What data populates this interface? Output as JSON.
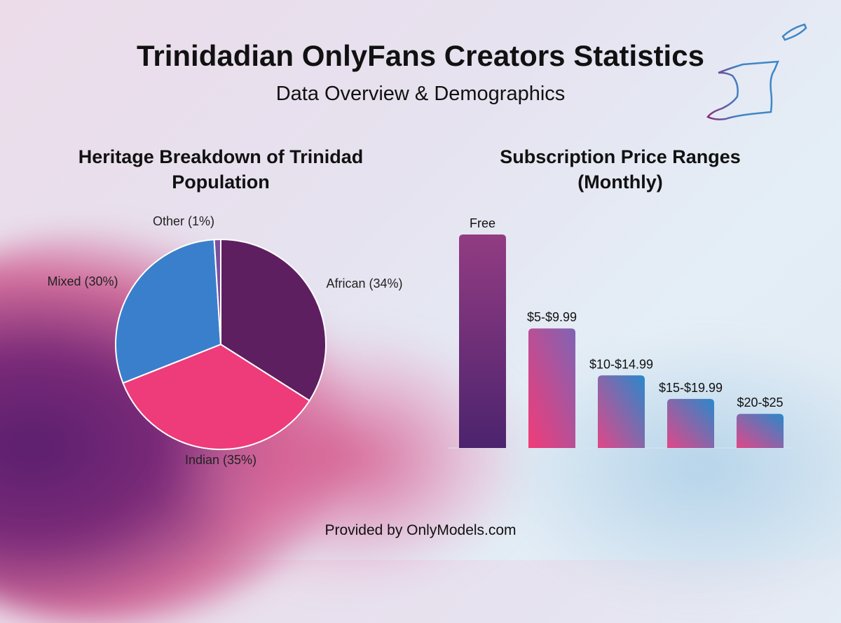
{
  "header": {
    "title": "Trinidadian OnlyFans Creators Statistics",
    "subtitle": "Data Overview & Demographics"
  },
  "footer": "Provided by OnlyModels.com",
  "colors": {
    "african": "#5e1f60",
    "indian": "#ee3b7a",
    "mixed": "#3a7fcb",
    "other": "#7a4fa0"
  },
  "chart_data": [
    {
      "type": "pie",
      "title": "Heritage Breakdown of Trinidad Population",
      "slices": [
        {
          "name": "African",
          "value": 34,
          "label": "African (34%)",
          "color": "#5e1f60"
        },
        {
          "name": "Indian",
          "value": 35,
          "label": "Indian (35%)",
          "color": "#ee3b7a"
        },
        {
          "name": "Mixed",
          "value": 30,
          "label": "Mixed (30%)",
          "color": "#3a7fcb"
        },
        {
          "name": "Other",
          "value": 1,
          "label": "Other (1%)",
          "color": "#7a4fa0"
        }
      ]
    },
    {
      "type": "bar",
      "title": "Subscription Price Ranges (Monthly)",
      "categories": [
        "Free",
        "$5-$9.99",
        "$10-$14.99",
        "$15-$19.99",
        "$20-$25"
      ],
      "values": [
        100,
        56,
        34,
        23,
        16
      ],
      "ylabel": "relative share (unlabeled)",
      "ylim": [
        0,
        100
      ]
    }
  ]
}
